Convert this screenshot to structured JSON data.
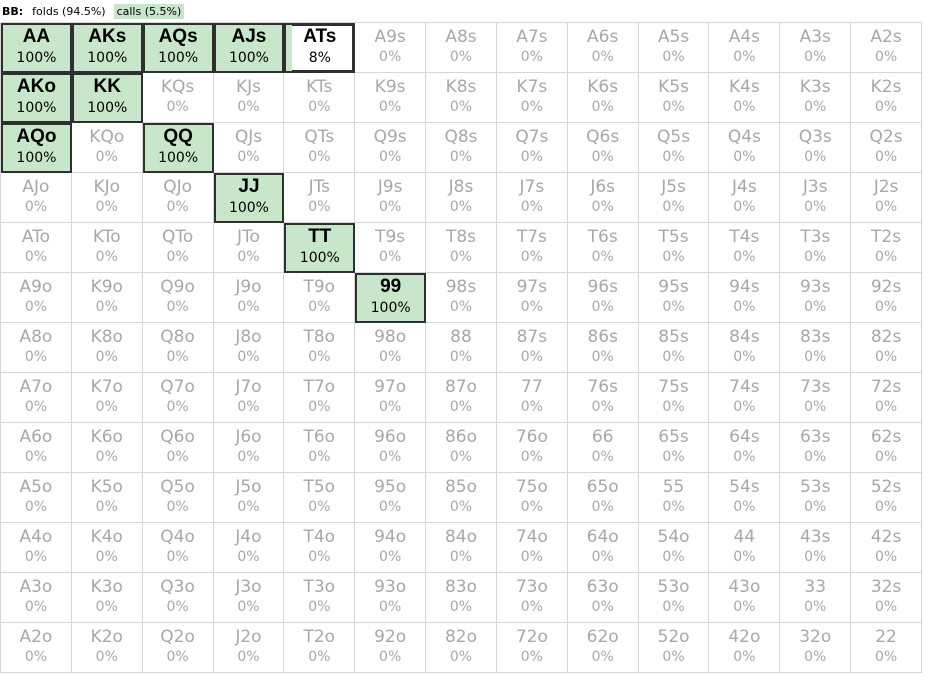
{
  "header": {
    "player": "BB:",
    "actions": [
      {
        "label": "folds (94.5%)",
        "kind": "fold"
      },
      {
        "label": "calls (5.5%)",
        "kind": "call"
      }
    ]
  },
  "colors": {
    "call_fill": "#c8e6c9",
    "grid_line": "#d6d6d6",
    "inactive_text": "#a8a8a8"
  },
  "grid": {
    "rows": [
      [
        {
          "hand": "AA",
          "pct": "100%",
          "call_fraction": 1,
          "selected": true
        },
        {
          "hand": "AKs",
          "pct": "100%",
          "call_fraction": 1,
          "selected": true
        },
        {
          "hand": "AQs",
          "pct": "100%",
          "call_fraction": 1,
          "selected": true
        },
        {
          "hand": "AJs",
          "pct": "100%",
          "call_fraction": 1,
          "selected": true
        },
        {
          "hand": "ATs",
          "pct": "8%",
          "call_fraction": 0.08,
          "selected": true
        },
        {
          "hand": "A9s",
          "pct": "0%"
        },
        {
          "hand": "A8s",
          "pct": "0%"
        },
        {
          "hand": "A7s",
          "pct": "0%"
        },
        {
          "hand": "A6s",
          "pct": "0%"
        },
        {
          "hand": "A5s",
          "pct": "0%"
        },
        {
          "hand": "A4s",
          "pct": "0%"
        },
        {
          "hand": "A3s",
          "pct": "0%"
        },
        {
          "hand": "A2s",
          "pct": "0%"
        }
      ],
      [
        {
          "hand": "AKo",
          "pct": "100%",
          "call_fraction": 1,
          "selected": true
        },
        {
          "hand": "KK",
          "pct": "100%",
          "call_fraction": 1,
          "selected": true
        },
        {
          "hand": "KQs",
          "pct": "0%"
        },
        {
          "hand": "KJs",
          "pct": "0%"
        },
        {
          "hand": "KTs",
          "pct": "0%"
        },
        {
          "hand": "K9s",
          "pct": "0%"
        },
        {
          "hand": "K8s",
          "pct": "0%"
        },
        {
          "hand": "K7s",
          "pct": "0%"
        },
        {
          "hand": "K6s",
          "pct": "0%"
        },
        {
          "hand": "K5s",
          "pct": "0%"
        },
        {
          "hand": "K4s",
          "pct": "0%"
        },
        {
          "hand": "K3s",
          "pct": "0%"
        },
        {
          "hand": "K2s",
          "pct": "0%"
        }
      ],
      [
        {
          "hand": "AQo",
          "pct": "100%",
          "call_fraction": 1,
          "selected": true
        },
        {
          "hand": "KQo",
          "pct": "0%"
        },
        {
          "hand": "QQ",
          "pct": "100%",
          "call_fraction": 1,
          "selected": true
        },
        {
          "hand": "QJs",
          "pct": "0%"
        },
        {
          "hand": "QTs",
          "pct": "0%"
        },
        {
          "hand": "Q9s",
          "pct": "0%"
        },
        {
          "hand": "Q8s",
          "pct": "0%"
        },
        {
          "hand": "Q7s",
          "pct": "0%"
        },
        {
          "hand": "Q6s",
          "pct": "0%"
        },
        {
          "hand": "Q5s",
          "pct": "0%"
        },
        {
          "hand": "Q4s",
          "pct": "0%"
        },
        {
          "hand": "Q3s",
          "pct": "0%"
        },
        {
          "hand": "Q2s",
          "pct": "0%"
        }
      ],
      [
        {
          "hand": "AJo",
          "pct": "0%"
        },
        {
          "hand": "KJo",
          "pct": "0%"
        },
        {
          "hand": "QJo",
          "pct": "0%"
        },
        {
          "hand": "JJ",
          "pct": "100%",
          "call_fraction": 1,
          "selected": true
        },
        {
          "hand": "JTs",
          "pct": "0%"
        },
        {
          "hand": "J9s",
          "pct": "0%"
        },
        {
          "hand": "J8s",
          "pct": "0%"
        },
        {
          "hand": "J7s",
          "pct": "0%"
        },
        {
          "hand": "J6s",
          "pct": "0%"
        },
        {
          "hand": "J5s",
          "pct": "0%"
        },
        {
          "hand": "J4s",
          "pct": "0%"
        },
        {
          "hand": "J3s",
          "pct": "0%"
        },
        {
          "hand": "J2s",
          "pct": "0%"
        }
      ],
      [
        {
          "hand": "ATo",
          "pct": "0%"
        },
        {
          "hand": "KTo",
          "pct": "0%"
        },
        {
          "hand": "QTo",
          "pct": "0%"
        },
        {
          "hand": "JTo",
          "pct": "0%"
        },
        {
          "hand": "TT",
          "pct": "100%",
          "call_fraction": 1,
          "selected": true
        },
        {
          "hand": "T9s",
          "pct": "0%"
        },
        {
          "hand": "T8s",
          "pct": "0%"
        },
        {
          "hand": "T7s",
          "pct": "0%"
        },
        {
          "hand": "T6s",
          "pct": "0%"
        },
        {
          "hand": "T5s",
          "pct": "0%"
        },
        {
          "hand": "T4s",
          "pct": "0%"
        },
        {
          "hand": "T3s",
          "pct": "0%"
        },
        {
          "hand": "T2s",
          "pct": "0%"
        }
      ],
      [
        {
          "hand": "A9o",
          "pct": "0%"
        },
        {
          "hand": "K9o",
          "pct": "0%"
        },
        {
          "hand": "Q9o",
          "pct": "0%"
        },
        {
          "hand": "J9o",
          "pct": "0%"
        },
        {
          "hand": "T9o",
          "pct": "0%"
        },
        {
          "hand": "99",
          "pct": "100%",
          "call_fraction": 1,
          "selected": true
        },
        {
          "hand": "98s",
          "pct": "0%"
        },
        {
          "hand": "97s",
          "pct": "0%"
        },
        {
          "hand": "96s",
          "pct": "0%"
        },
        {
          "hand": "95s",
          "pct": "0%"
        },
        {
          "hand": "94s",
          "pct": "0%"
        },
        {
          "hand": "93s",
          "pct": "0%"
        },
        {
          "hand": "92s",
          "pct": "0%"
        }
      ],
      [
        {
          "hand": "A8o",
          "pct": "0%"
        },
        {
          "hand": "K8o",
          "pct": "0%"
        },
        {
          "hand": "Q8o",
          "pct": "0%"
        },
        {
          "hand": "J8o",
          "pct": "0%"
        },
        {
          "hand": "T8o",
          "pct": "0%"
        },
        {
          "hand": "98o",
          "pct": "0%"
        },
        {
          "hand": "88",
          "pct": "0%"
        },
        {
          "hand": "87s",
          "pct": "0%"
        },
        {
          "hand": "86s",
          "pct": "0%"
        },
        {
          "hand": "85s",
          "pct": "0%"
        },
        {
          "hand": "84s",
          "pct": "0%"
        },
        {
          "hand": "83s",
          "pct": "0%"
        },
        {
          "hand": "82s",
          "pct": "0%"
        }
      ],
      [
        {
          "hand": "A7o",
          "pct": "0%"
        },
        {
          "hand": "K7o",
          "pct": "0%"
        },
        {
          "hand": "Q7o",
          "pct": "0%"
        },
        {
          "hand": "J7o",
          "pct": "0%"
        },
        {
          "hand": "T7o",
          "pct": "0%"
        },
        {
          "hand": "97o",
          "pct": "0%"
        },
        {
          "hand": "87o",
          "pct": "0%"
        },
        {
          "hand": "77",
          "pct": "0%"
        },
        {
          "hand": "76s",
          "pct": "0%"
        },
        {
          "hand": "75s",
          "pct": "0%"
        },
        {
          "hand": "74s",
          "pct": "0%"
        },
        {
          "hand": "73s",
          "pct": "0%"
        },
        {
          "hand": "72s",
          "pct": "0%"
        }
      ],
      [
        {
          "hand": "A6o",
          "pct": "0%"
        },
        {
          "hand": "K6o",
          "pct": "0%"
        },
        {
          "hand": "Q6o",
          "pct": "0%"
        },
        {
          "hand": "J6o",
          "pct": "0%"
        },
        {
          "hand": "T6o",
          "pct": "0%"
        },
        {
          "hand": "96o",
          "pct": "0%"
        },
        {
          "hand": "86o",
          "pct": "0%"
        },
        {
          "hand": "76o",
          "pct": "0%"
        },
        {
          "hand": "66",
          "pct": "0%"
        },
        {
          "hand": "65s",
          "pct": "0%"
        },
        {
          "hand": "64s",
          "pct": "0%"
        },
        {
          "hand": "63s",
          "pct": "0%"
        },
        {
          "hand": "62s",
          "pct": "0%"
        }
      ],
      [
        {
          "hand": "A5o",
          "pct": "0%"
        },
        {
          "hand": "K5o",
          "pct": "0%"
        },
        {
          "hand": "Q5o",
          "pct": "0%"
        },
        {
          "hand": "J5o",
          "pct": "0%"
        },
        {
          "hand": "T5o",
          "pct": "0%"
        },
        {
          "hand": "95o",
          "pct": "0%"
        },
        {
          "hand": "85o",
          "pct": "0%"
        },
        {
          "hand": "75o",
          "pct": "0%"
        },
        {
          "hand": "65o",
          "pct": "0%"
        },
        {
          "hand": "55",
          "pct": "0%"
        },
        {
          "hand": "54s",
          "pct": "0%"
        },
        {
          "hand": "53s",
          "pct": "0%"
        },
        {
          "hand": "52s",
          "pct": "0%"
        }
      ],
      [
        {
          "hand": "A4o",
          "pct": "0%"
        },
        {
          "hand": "K4o",
          "pct": "0%"
        },
        {
          "hand": "Q4o",
          "pct": "0%"
        },
        {
          "hand": "J4o",
          "pct": "0%"
        },
        {
          "hand": "T4o",
          "pct": "0%"
        },
        {
          "hand": "94o",
          "pct": "0%"
        },
        {
          "hand": "84o",
          "pct": "0%"
        },
        {
          "hand": "74o",
          "pct": "0%"
        },
        {
          "hand": "64o",
          "pct": "0%"
        },
        {
          "hand": "54o",
          "pct": "0%"
        },
        {
          "hand": "44",
          "pct": "0%"
        },
        {
          "hand": "43s",
          "pct": "0%"
        },
        {
          "hand": "42s",
          "pct": "0%"
        }
      ],
      [
        {
          "hand": "A3o",
          "pct": "0%"
        },
        {
          "hand": "K3o",
          "pct": "0%"
        },
        {
          "hand": "Q3o",
          "pct": "0%"
        },
        {
          "hand": "J3o",
          "pct": "0%"
        },
        {
          "hand": "T3o",
          "pct": "0%"
        },
        {
          "hand": "93o",
          "pct": "0%"
        },
        {
          "hand": "83o",
          "pct": "0%"
        },
        {
          "hand": "73o",
          "pct": "0%"
        },
        {
          "hand": "63o",
          "pct": "0%"
        },
        {
          "hand": "53o",
          "pct": "0%"
        },
        {
          "hand": "43o",
          "pct": "0%"
        },
        {
          "hand": "33",
          "pct": "0%"
        },
        {
          "hand": "32s",
          "pct": "0%"
        }
      ],
      [
        {
          "hand": "A2o",
          "pct": "0%"
        },
        {
          "hand": "K2o",
          "pct": "0%"
        },
        {
          "hand": "Q2o",
          "pct": "0%"
        },
        {
          "hand": "J2o",
          "pct": "0%"
        },
        {
          "hand": "T2o",
          "pct": "0%"
        },
        {
          "hand": "92o",
          "pct": "0%"
        },
        {
          "hand": "82o",
          "pct": "0%"
        },
        {
          "hand": "72o",
          "pct": "0%"
        },
        {
          "hand": "62o",
          "pct": "0%"
        },
        {
          "hand": "52o",
          "pct": "0%"
        },
        {
          "hand": "42o",
          "pct": "0%"
        },
        {
          "hand": "32o",
          "pct": "0%"
        },
        {
          "hand": "22",
          "pct": "0%"
        }
      ]
    ]
  }
}
